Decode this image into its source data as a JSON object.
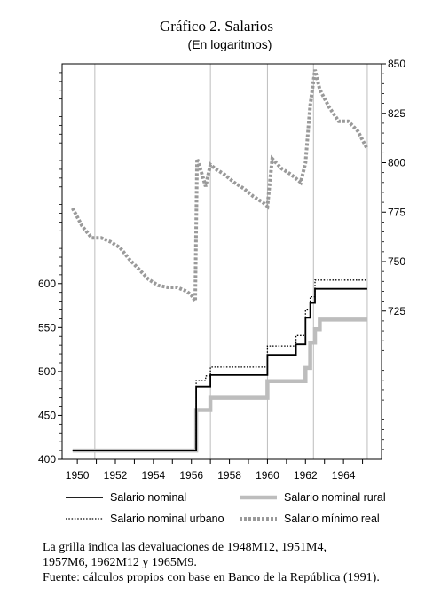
{
  "chart_data": {
    "type": "line",
    "title": "Gráfico 2. Salarios",
    "subtitle": "(En logaritmos)",
    "x_ticks": [
      "1950",
      "1952",
      "1954",
      "1956",
      "1958",
      "1960",
      "1962",
      "1964"
    ],
    "xlim": [
      1949.2,
      1966.0
    ],
    "left_axis": {
      "ticks": [
        "400",
        "450",
        "500",
        "550",
        "600"
      ],
      "tick_values": [
        400,
        450,
        500,
        550,
        600
      ],
      "ylim": [
        400,
        850
      ]
    },
    "right_axis": {
      "ticks": [
        "725",
        "750",
        "775",
        "800",
        "825",
        "850"
      ],
      "tick_values": [
        725,
        750,
        775,
        800,
        825,
        850
      ],
      "ylim": [
        650,
        850
      ]
    },
    "grid_x": [
      1950.92,
      1957.0,
      1960.0,
      1962.42,
      1965.25
    ],
    "legend_position": "bottom",
    "series": [
      {
        "name": "Salario nominal",
        "axis": "left",
        "style": "solid-black",
        "color": "#000000",
        "x": [
          1949.75,
          1956.25,
          1956.25,
          1956.5,
          1956.5,
          1957.0,
          1957.0,
          1960.0,
          1960.0,
          1961.5,
          1961.5,
          1962.0,
          1962.0,
          1962.25,
          1962.25,
          1962.5,
          1962.5,
          1965.25
        ],
        "y": [
          410,
          410,
          483,
          483,
          483,
          483,
          496,
          496,
          519,
          519,
          531,
          531,
          561,
          561,
          578,
          578,
          594,
          594
        ]
      },
      {
        "name": "Salario nominal urbano",
        "axis": "left",
        "style": "dotted-black",
        "color": "#000000",
        "x": [
          1949.75,
          1956.25,
          1956.25,
          1956.75,
          1956.75,
          1957.0,
          1957.0,
          1960.0,
          1960.0,
          1961.5,
          1961.5,
          1962.0,
          1962.0,
          1962.25,
          1962.25,
          1962.5,
          1962.5,
          1965.25
        ],
        "y": [
          410,
          410,
          490,
          490,
          495,
          495,
          505,
          505,
          529,
          529,
          541,
          541,
          570,
          570,
          585,
          585,
          604,
          604
        ]
      },
      {
        "name": "Salario nominal rural",
        "axis": "left",
        "style": "thick-gray",
        "color": "#bdbdbd",
        "x": [
          1949.75,
          1956.25,
          1956.25,
          1956.75,
          1956.75,
          1957.0,
          1957.0,
          1960.0,
          1960.0,
          1962.0,
          1962.0,
          1962.25,
          1962.25,
          1962.5,
          1962.5,
          1962.75,
          1962.75,
          1965.25
        ],
        "y": [
          410,
          410,
          456,
          456,
          456,
          456,
          470,
          470,
          489,
          489,
          504,
          504,
          533,
          533,
          548,
          548,
          559,
          559
        ]
      },
      {
        "name": "Salario mínimo real",
        "axis": "right",
        "style": "thick-gray-dotted",
        "color": "#9a9a9a",
        "x": [
          1949.75,
          1950.25,
          1950.75,
          1951.25,
          1951.75,
          1952.25,
          1952.75,
          1953.25,
          1953.75,
          1954.25,
          1954.75,
          1955.25,
          1955.75,
          1956.0,
          1956.2,
          1956.3,
          1956.5,
          1956.75,
          1957.0,
          1957.25,
          1957.75,
          1958.25,
          1958.75,
          1959.25,
          1959.75,
          1960.0,
          1960.25,
          1960.75,
          1961.25,
          1961.5,
          1961.75,
          1962.0,
          1962.25,
          1962.5,
          1962.75,
          1963.25,
          1963.75,
          1964.25,
          1964.75,
          1965.25
        ],
        "y": [
          777,
          768,
          762,
          762,
          760,
          757,
          751,
          746,
          741,
          738,
          737,
          737,
          735,
          733,
          730,
          802,
          796,
          788,
          799,
          797,
          794,
          790,
          787,
          783,
          780,
          778,
          802,
          797,
          794,
          792,
          790,
          800,
          829,
          847,
          837,
          828,
          821,
          821,
          816,
          807
        ]
      }
    ]
  },
  "notes": [
    "La grilla indica las devaluaciones de 1948M12, 1951M4,",
    "1957M6, 1962M12 y 1965M9.",
    "Fuente: cálculos propios con base en Banco de la República (1991)."
  ]
}
